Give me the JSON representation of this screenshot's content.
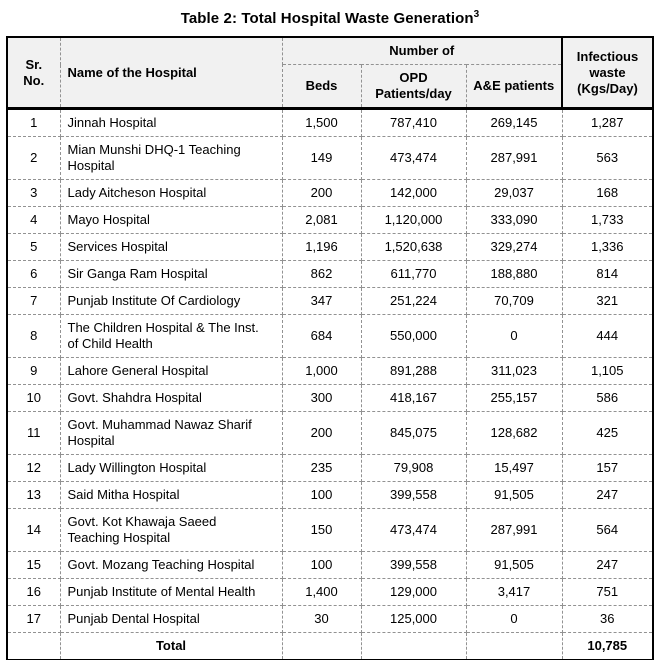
{
  "title": {
    "text": "Table 2: Total Hospital Waste Generation",
    "superscript": "3"
  },
  "table": {
    "header": {
      "sr_no": "Sr.\nNo.",
      "name": "Name of the Hospital",
      "number_of": "Number of",
      "beds": "Beds",
      "opd": "OPD Patients/day",
      "ae": "A&E patients",
      "infectious": "Infectious waste (Kgs/Day)"
    },
    "rows": [
      {
        "sr": "1",
        "name": "Jinnah Hospital",
        "beds": "1,500",
        "opd": "787,410",
        "ae": "269,145",
        "infectious": "1,287"
      },
      {
        "sr": "2",
        "name": "Mian Munshi DHQ-1 Teaching Hospital",
        "beds": "149",
        "opd": "473,474",
        "ae": "287,991",
        "infectious": "563"
      },
      {
        "sr": "3",
        "name": "Lady Aitcheson Hospital",
        "beds": "200",
        "opd": "142,000",
        "ae": "29,037",
        "infectious": "168"
      },
      {
        "sr": "4",
        "name": "Mayo Hospital",
        "beds": "2,081",
        "opd": "1,120,000",
        "ae": "333,090",
        "infectious": "1,733"
      },
      {
        "sr": "5",
        "name": "Services Hospital",
        "beds": "1,196",
        "opd": "1,520,638",
        "ae": "329,274",
        "infectious": "1,336"
      },
      {
        "sr": "6",
        "name": "Sir Ganga Ram Hospital",
        "beds": "862",
        "opd": "611,770",
        "ae": "188,880",
        "infectious": "814"
      },
      {
        "sr": "7",
        "name": "Punjab Institute Of Cardiology",
        "beds": "347",
        "opd": "251,224",
        "ae": "70,709",
        "infectious": "321"
      },
      {
        "sr": "8",
        "name": "The Children Hospital & The Inst. of Child Health",
        "beds": "684",
        "opd": "550,000",
        "ae": "0",
        "infectious": "444"
      },
      {
        "sr": "9",
        "name": "Lahore General Hospital",
        "beds": "1,000",
        "opd": "891,288",
        "ae": "311,023",
        "infectious": "1,105"
      },
      {
        "sr": "10",
        "name": "Govt. Shahdra Hospital",
        "beds": "300",
        "opd": "418,167",
        "ae": "255,157",
        "infectious": "586"
      },
      {
        "sr": "11",
        "name": "Govt. Muhammad Nawaz Sharif Hospital",
        "beds": "200",
        "opd": "845,075",
        "ae": "128,682",
        "infectious": "425"
      },
      {
        "sr": "12",
        "name": "Lady Willington Hospital",
        "beds": "235",
        "opd": "79,908",
        "ae": "15,497",
        "infectious": "157"
      },
      {
        "sr": "13",
        "name": "Said Mitha Hospital",
        "beds": "100",
        "opd": "399,558",
        "ae": "91,505",
        "infectious": "247"
      },
      {
        "sr": "14",
        "name": "Govt. Kot Khawaja Saeed Teaching Hospital",
        "beds": "150",
        "opd": "473,474",
        "ae": "287,991",
        "infectious": "564"
      },
      {
        "sr": "15",
        "name": "Govt. Mozang Teaching Hospital",
        "beds": "100",
        "opd": "399,558",
        "ae": "91,505",
        "infectious": "247"
      },
      {
        "sr": "16",
        "name": "Punjab Institute of Mental Health",
        "beds": "1,400",
        "opd": "129,000",
        "ae": "3,417",
        "infectious": "751"
      },
      {
        "sr": "17",
        "name": "Punjab Dental Hospital",
        "beds": "30",
        "opd": "125,000",
        "ae": "0",
        "infectious": "36"
      }
    ],
    "total": {
      "label": "Total",
      "sr": "",
      "beds": "",
      "opd": "",
      "ae": "",
      "infectious": "10,785"
    }
  }
}
